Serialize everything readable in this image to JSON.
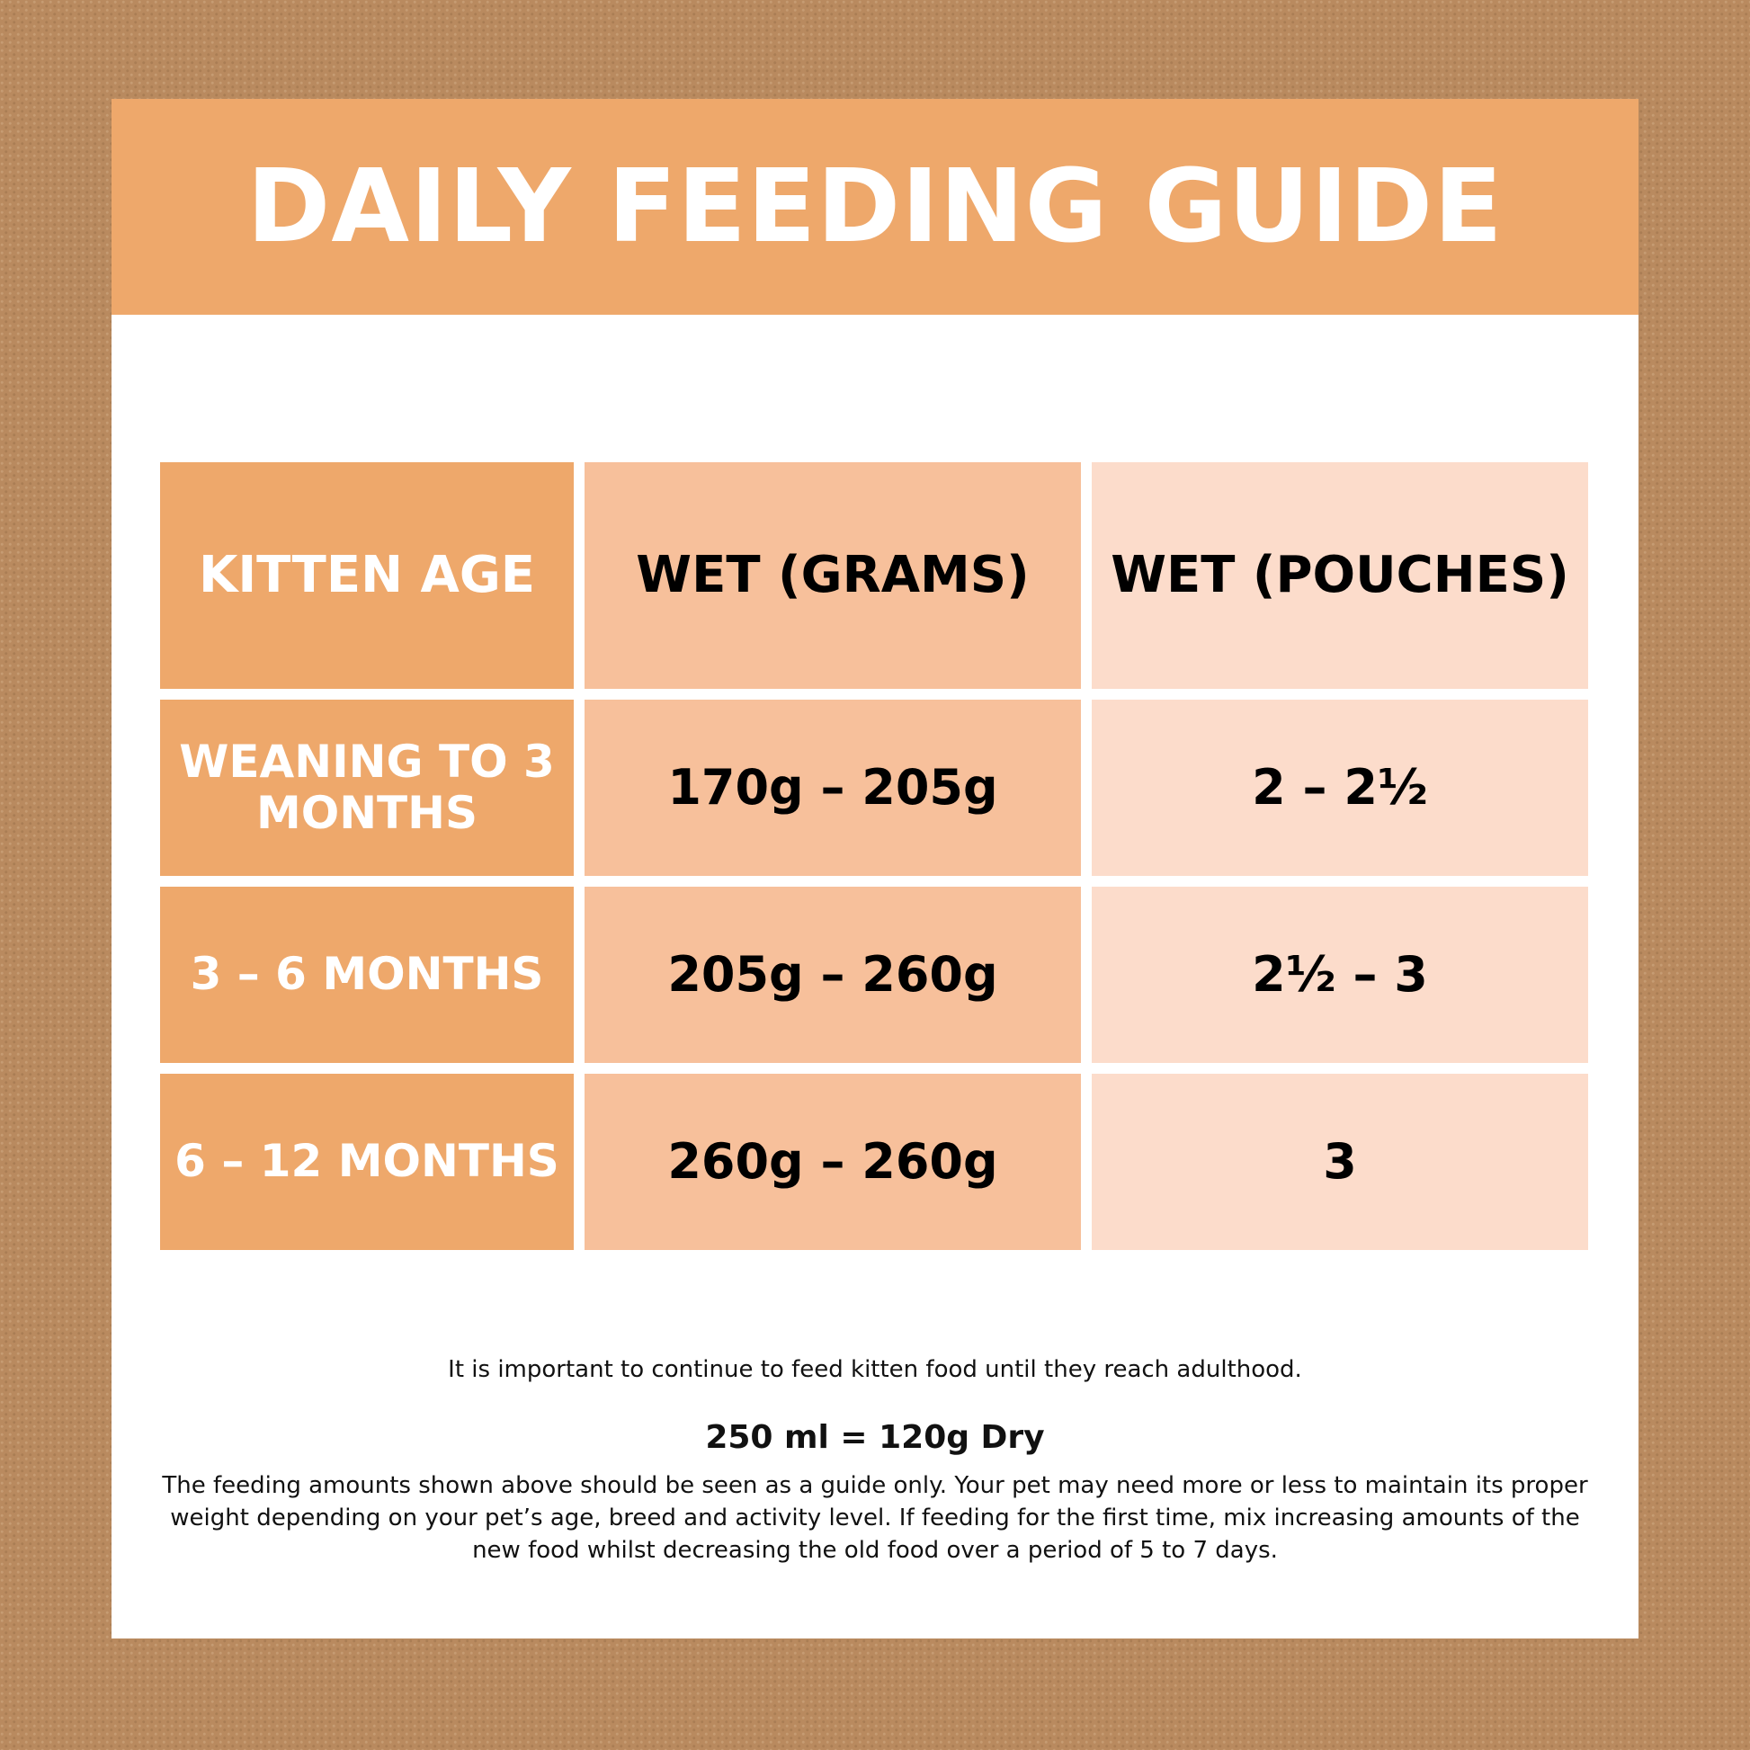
{
  "title": "DAILY FEEDING GUIDE",
  "table": {
    "headers": [
      "KITTEN AGE",
      "WET (GRAMS)",
      "WET (POUCHES)"
    ],
    "rows": [
      {
        "age": "WEANING TO 3 MONTHS",
        "grams": "170g – 205g",
        "pouches": "2 – 2½"
      },
      {
        "age": "3 – 6 MONTHS",
        "grams": "205g – 260g",
        "pouches": "2½ – 3"
      },
      {
        "age": "6 – 12 MONTHS",
        "grams": "260g – 260g",
        "pouches": "3"
      }
    ]
  },
  "notes": {
    "adulthood": "It is important to continue to feed kitten food until they reach adulthood.",
    "conversion": "250 ml = 120g Dry",
    "guide": "The feeding amounts shown above should be seen as a guide only. Your pet may need more or less to maintain its proper weight depending on your pet’s age, breed and activity level. If feeding for the first time, mix increasing amounts of the new food whilst decreasing the old food over a period of 5 to 7 days."
  },
  "colors": {
    "background": "#b98a5f",
    "accent": "#eea86b",
    "grams_column": "#f7c09b",
    "pouches_column": "#fcdccb"
  }
}
